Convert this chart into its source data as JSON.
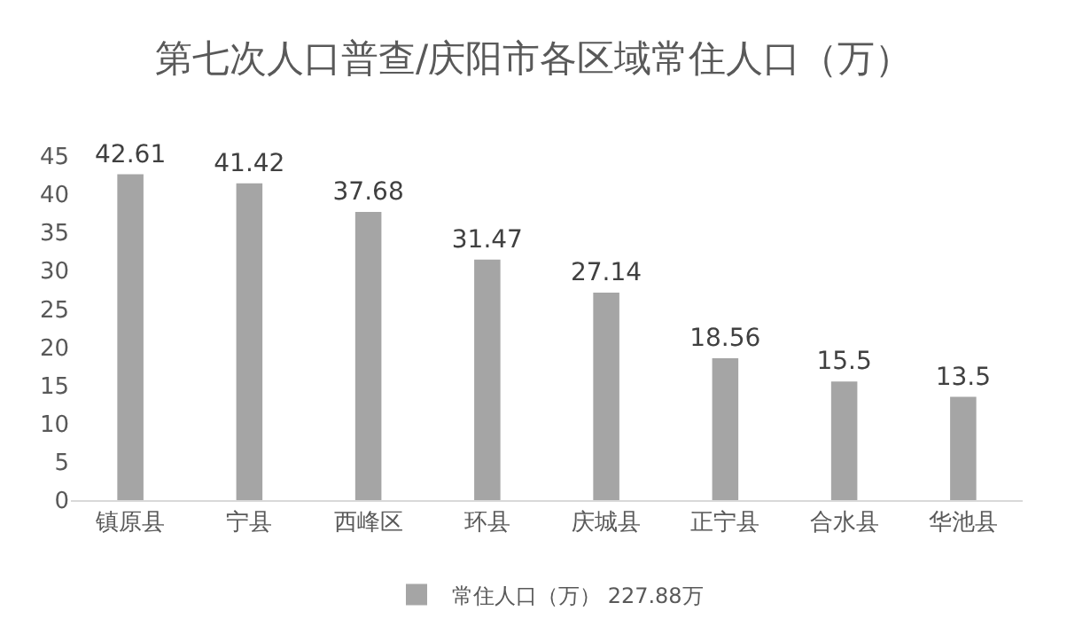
{
  "chart_data": {
    "type": "bar",
    "title": "第七次人口普查/庆阳市各区域常住人口（万）",
    "categories": [
      "镇原县",
      "宁县",
      "西峰区",
      "环县",
      "庆城县",
      "正宁县",
      "合水县",
      "华池县"
    ],
    "series": [
      {
        "name": "常住人口（万） 227.88万",
        "color": "#a5a5a5",
        "values": [
          42.61,
          41.42,
          37.68,
          31.47,
          27.14,
          18.56,
          15.5,
          13.5
        ]
      }
    ],
    "ylim": [
      0,
      45
    ],
    "yticks": [
      0,
      5,
      10,
      15,
      20,
      25,
      30,
      35,
      40,
      45
    ],
    "data_labels": true,
    "grid": false,
    "legend": "bottom"
  }
}
